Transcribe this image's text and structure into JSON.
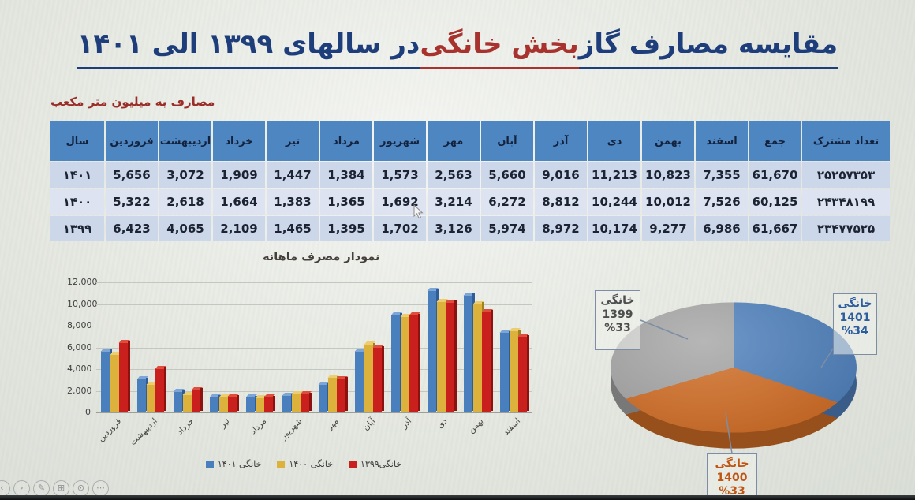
{
  "slide": {
    "title": {
      "part1": "مقایسه مصارف گاز ",
      "part2_red": "بخش خانگی",
      "part3": " در سالهای ۱۳۹۹ الی ۱۴۰۱"
    },
    "subtitle": "مصارف به میلیون متر مکعب",
    "chart_caption": "نمودار مصرف ماهانه"
  },
  "table": {
    "columns": [
      "سال",
      "فروردین",
      "اردیبهشت",
      "خرداد",
      "تیر",
      "مرداد",
      "شهریور",
      "مهر",
      "آبان",
      "آذر",
      "دی",
      "بهمن",
      "اسفند",
      "جمع",
      "تعداد مشترک"
    ],
    "rows": [
      {
        "year": "۱۴۰۱",
        "values": [
          "5,656",
          "3,072",
          "1,909",
          "1,447",
          "1,384",
          "1,573",
          "2,563",
          "5,660",
          "9,016",
          "11,213",
          "10,823",
          "7,355",
          "61,670"
        ],
        "subscribers": "۲۵۲۵۷۳۵۳"
      },
      {
        "year": "۱۴۰۰",
        "values": [
          "5,322",
          "2,618",
          "1,664",
          "1,383",
          "1,365",
          "1,692",
          "3,214",
          "6,272",
          "8,812",
          "10,244",
          "10,012",
          "7,526",
          "60,125"
        ],
        "subscribers": "۲۴۳۴۸۱۹۹"
      },
      {
        "year": "۱۳۹۹",
        "values": [
          "6,423",
          "4,065",
          "2,109",
          "1,465",
          "1,395",
          "1,702",
          "3,126",
          "5,974",
          "8,972",
          "10,174",
          "9,277",
          "6,986",
          "61,667"
        ],
        "subscribers": "۲۳۴۷۷۵۲۵"
      }
    ]
  },
  "chart_data": [
    {
      "type": "bar",
      "title": "نمودار مصرف ماهانه",
      "categories": [
        "فروردین",
        "اردیبهشت",
        "خرداد",
        "تیر",
        "مرداد",
        "شهریور",
        "مهر",
        "آبان",
        "آذر",
        "دی",
        "بهمن",
        "اسفند"
      ],
      "series": [
        {
          "name": "خانگی ۱۴۰۱",
          "color": "#4a7fbe",
          "cap": "#7da6d6",
          "side": "#2f5d99",
          "values": [
            5656,
            3072,
            1909,
            1447,
            1384,
            1573,
            2563,
            5660,
            9016,
            11213,
            10823,
            7355
          ]
        },
        {
          "name": "خانگی ۱۴۰۰",
          "color": "#ddb23c",
          "cap": "#eccd6f",
          "side": "#a5801f",
          "values": [
            5322,
            2618,
            1664,
            1383,
            1365,
            1692,
            3214,
            6272,
            8812,
            10244,
            10012,
            7526
          ]
        },
        {
          "name": "خانگی۱۳۹۹",
          "color": "#c9201d",
          "cap": "#dd4f3c",
          "side": "#8c1210",
          "values": [
            6423,
            4065,
            2109,
            1465,
            1395,
            1702,
            3126,
            5974,
            8972,
            10174,
            9277,
            6986
          ]
        }
      ],
      "xlabel": "",
      "ylabel": "",
      "ylim": [
        0,
        12000
      ],
      "ytick_step": 2000,
      "yticks": [
        "0",
        "2,000",
        "4,000",
        "6,000",
        "8,000",
        "10,000",
        "12,000"
      ],
      "grid": true,
      "legend_position": "bottom"
    },
    {
      "type": "pie",
      "slices": [
        {
          "label": "خانگی",
          "year": "1401",
          "pct": 34,
          "pct_label": "%34",
          "color": "#4f81bd",
          "label_color": "#2d5d9e"
        },
        {
          "label": "خانگی",
          "year": "1400",
          "pct": 33,
          "pct_label": "%33",
          "color": "#d26e26",
          "label_color": "#c05512"
        },
        {
          "label": "خانگی",
          "year": "1399",
          "pct": 33,
          "pct_label": "%33",
          "color": "#a6a6a6",
          "label_color": "#4d4d4d"
        }
      ],
      "legend_position": "callouts"
    }
  ],
  "toolbar": {
    "buttons": [
      {
        "name": "previous-slide",
        "glyph": "‹"
      },
      {
        "name": "next-slide",
        "glyph": "›"
      },
      {
        "name": "pen",
        "glyph": "✎"
      },
      {
        "name": "all-slides",
        "glyph": "⊞"
      },
      {
        "name": "zoom",
        "glyph": "⊙"
      },
      {
        "name": "more-options",
        "glyph": "⋯"
      }
    ]
  },
  "colors": {
    "title_blue": "#1e3d7b",
    "title_red": "#a8332e",
    "table_header_bg": "#4e86c2",
    "row_a_bg": "#ccd7e9",
    "row_b_bg": "#dde3f0",
    "red_numbers": "#a8332e"
  }
}
